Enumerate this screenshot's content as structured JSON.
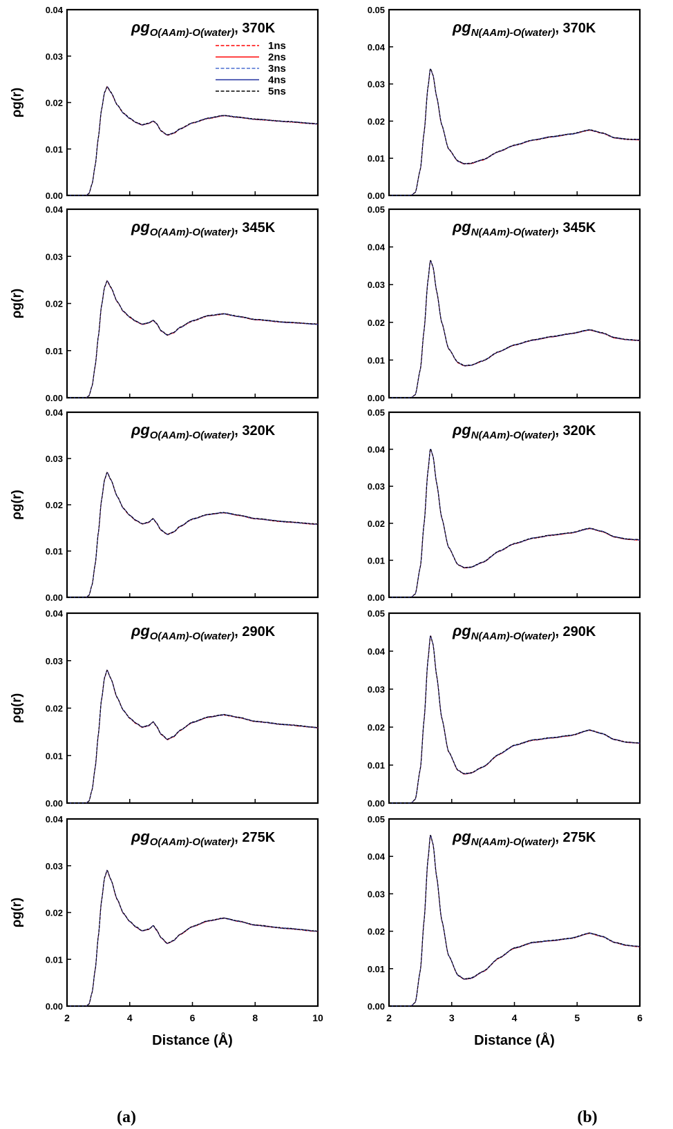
{
  "figure": {
    "column_captions": [
      "(a)",
      "(b)"
    ],
    "legend": [
      {
        "label": "1ns",
        "color": "#ff0000",
        "dash": true
      },
      {
        "label": "2ns",
        "color": "#ff0000",
        "dash": false
      },
      {
        "label": "3ns",
        "color": "#4a6fd0",
        "dash": true
      },
      {
        "label": "4ns",
        "color": "#1f2f9e",
        "dash": false
      },
      {
        "label": "5ns",
        "color": "#000000",
        "dash": true
      }
    ]
  },
  "chart_data": [
    {
      "type": "line",
      "title": "ρg",
      "title_sub": "O(AAm)-O(water)",
      "title_temp": ", 370K",
      "xlabel": "",
      "ylabel": "ρg(r)",
      "xlim": [
        2,
        10
      ],
      "ylim": [
        0,
        0.04
      ],
      "yticks": [
        "0.00",
        "0.01",
        "0.02",
        "0.03",
        "0.04"
      ],
      "xticks": [],
      "onset": 2.65,
      "profile": [
        [
          2.6,
          0
        ],
        [
          2.7,
          0.0004
        ],
        [
          2.8,
          0.0025
        ],
        [
          2.9,
          0.0065
        ],
        [
          3.0,
          0.0125
        ],
        [
          3.1,
          0.0185
        ],
        [
          3.2,
          0.0222
        ],
        [
          3.28,
          0.0234
        ],
        [
          3.4,
          0.0222
        ],
        [
          3.6,
          0.0195
        ],
        [
          3.8,
          0.0177
        ],
        [
          4.0,
          0.0166
        ],
        [
          4.2,
          0.0157
        ],
        [
          4.4,
          0.0152
        ],
        [
          4.6,
          0.0155
        ],
        [
          4.75,
          0.016
        ],
        [
          4.85,
          0.0155
        ],
        [
          5.0,
          0.0139
        ],
        [
          5.2,
          0.013
        ],
        [
          5.4,
          0.0134
        ],
        [
          5.6,
          0.0143
        ],
        [
          6.0,
          0.0156
        ],
        [
          6.5,
          0.0166
        ],
        [
          7.0,
          0.0172
        ],
        [
          7.5,
          0.0168
        ],
        [
          8.0,
          0.0164
        ],
        [
          9.0,
          0.0159
        ],
        [
          10.0,
          0.0154
        ]
      ]
    },
    {
      "type": "line",
      "title": "ρg",
      "title_sub": "N(AAm)-O(water)",
      "title_temp": ", 370K",
      "xlabel": "",
      "ylabel": "",
      "xlim": [
        2,
        6
      ],
      "ylim": [
        0,
        0.05
      ],
      "yticks": [
        "0.00",
        "0.01",
        "0.02",
        "0.03",
        "0.04",
        "0.05"
      ],
      "xticks": [],
      "onset": 2.38,
      "profile": [
        [
          2.35,
          0
        ],
        [
          2.42,
          0.0008
        ],
        [
          2.5,
          0.007
        ],
        [
          2.56,
          0.017
        ],
        [
          2.62,
          0.029
        ],
        [
          2.66,
          0.0342
        ],
        [
          2.7,
          0.0325
        ],
        [
          2.76,
          0.0265
        ],
        [
          2.84,
          0.019
        ],
        [
          2.95,
          0.0125
        ],
        [
          3.1,
          0.0092
        ],
        [
          3.2,
          0.0085
        ],
        [
          3.3,
          0.0086
        ],
        [
          3.5,
          0.0096
        ],
        [
          3.75,
          0.0118
        ],
        [
          4.0,
          0.0135
        ],
        [
          4.3,
          0.0149
        ],
        [
          4.6,
          0.0158
        ],
        [
          4.9,
          0.0165
        ],
        [
          5.2,
          0.0176
        ],
        [
          5.4,
          0.0168
        ],
        [
          5.6,
          0.0155
        ],
        [
          5.8,
          0.0151
        ],
        [
          6.0,
          0.015
        ]
      ]
    },
    {
      "type": "line",
      "title": "ρg",
      "title_sub": "O(AAm)-O(water)",
      "title_temp": ", 345K",
      "xlabel": "",
      "ylabel": "ρg(r)",
      "xlim": [
        2,
        10
      ],
      "ylim": [
        0,
        0.04
      ],
      "yticks": [
        "0.00",
        "0.01",
        "0.02",
        "0.03",
        "0.04"
      ],
      "xticks": [],
      "onset": 2.65,
      "profile": [
        [
          2.6,
          0
        ],
        [
          2.7,
          0.0004
        ],
        [
          2.8,
          0.0025
        ],
        [
          2.9,
          0.0068
        ],
        [
          3.0,
          0.013
        ],
        [
          3.1,
          0.0195
        ],
        [
          3.2,
          0.0235
        ],
        [
          3.28,
          0.0248
        ],
        [
          3.4,
          0.0234
        ],
        [
          3.6,
          0.0204
        ],
        [
          3.8,
          0.0183
        ],
        [
          4.0,
          0.0171
        ],
        [
          4.2,
          0.0162
        ],
        [
          4.4,
          0.0156
        ],
        [
          4.6,
          0.0159
        ],
        [
          4.75,
          0.0164
        ],
        [
          4.85,
          0.0158
        ],
        [
          5.0,
          0.0142
        ],
        [
          5.2,
          0.0133
        ],
        [
          5.4,
          0.0138
        ],
        [
          5.6,
          0.0149
        ],
        [
          6.0,
          0.0163
        ],
        [
          6.5,
          0.0174
        ],
        [
          7.0,
          0.0178
        ],
        [
          7.5,
          0.0172
        ],
        [
          8.0,
          0.0166
        ],
        [
          9.0,
          0.016
        ],
        [
          10.0,
          0.0156
        ]
      ]
    },
    {
      "type": "line",
      "title": "ρg",
      "title_sub": "N(AAm)-O(water)",
      "title_temp": ", 345K",
      "xlabel": "",
      "ylabel": "",
      "xlim": [
        2,
        6
      ],
      "ylim": [
        0,
        0.05
      ],
      "yticks": [
        "0.00",
        "0.01",
        "0.02",
        "0.03",
        "0.04",
        "0.05"
      ],
      "xticks": [],
      "onset": 2.38,
      "profile": [
        [
          2.35,
          0
        ],
        [
          2.42,
          0.0008
        ],
        [
          2.5,
          0.0075
        ],
        [
          2.56,
          0.018
        ],
        [
          2.62,
          0.031
        ],
        [
          2.66,
          0.0365
        ],
        [
          2.7,
          0.0348
        ],
        [
          2.76,
          0.0282
        ],
        [
          2.84,
          0.02
        ],
        [
          2.95,
          0.013
        ],
        [
          3.1,
          0.0093
        ],
        [
          3.2,
          0.0085
        ],
        [
          3.3,
          0.0086
        ],
        [
          3.5,
          0.0098
        ],
        [
          3.75,
          0.0122
        ],
        [
          4.0,
          0.014
        ],
        [
          4.3,
          0.0153
        ],
        [
          4.6,
          0.0162
        ],
        [
          4.9,
          0.017
        ],
        [
          5.2,
          0.018
        ],
        [
          5.4,
          0.0172
        ],
        [
          5.6,
          0.0159
        ],
        [
          5.8,
          0.0154
        ],
        [
          6.0,
          0.0152
        ]
      ]
    },
    {
      "type": "line",
      "title": "ρg",
      "title_sub": "O(AAm)-O(water)",
      "title_temp": ", 320K",
      "xlabel": "",
      "ylabel": "ρg(r)",
      "xlim": [
        2,
        10
      ],
      "ylim": [
        0,
        0.04
      ],
      "yticks": [
        "0.00",
        "0.01",
        "0.02",
        "0.03",
        "0.04"
      ],
      "xticks": [],
      "onset": 2.65,
      "profile": [
        [
          2.6,
          0
        ],
        [
          2.7,
          0.0004
        ],
        [
          2.8,
          0.0027
        ],
        [
          2.9,
          0.0072
        ],
        [
          3.0,
          0.014
        ],
        [
          3.1,
          0.021
        ],
        [
          3.2,
          0.0255
        ],
        [
          3.28,
          0.027
        ],
        [
          3.4,
          0.0254
        ],
        [
          3.6,
          0.0218
        ],
        [
          3.8,
          0.0192
        ],
        [
          4.0,
          0.0177
        ],
        [
          4.2,
          0.0166
        ],
        [
          4.4,
          0.0159
        ],
        [
          4.6,
          0.0162
        ],
        [
          4.75,
          0.017
        ],
        [
          4.85,
          0.0161
        ],
        [
          5.0,
          0.0145
        ],
        [
          5.2,
          0.0136
        ],
        [
          5.4,
          0.0141
        ],
        [
          5.6,
          0.0153
        ],
        [
          6.0,
          0.0169
        ],
        [
          6.5,
          0.0179
        ],
        [
          7.0,
          0.0183
        ],
        [
          7.5,
          0.0177
        ],
        [
          8.0,
          0.017
        ],
        [
          9.0,
          0.0163
        ],
        [
          10.0,
          0.0158
        ]
      ]
    },
    {
      "type": "line",
      "title": "ρg",
      "title_sub": "N(AAm)-O(water)",
      "title_temp": ", 320K",
      "xlabel": "",
      "ylabel": "",
      "xlim": [
        2,
        6
      ],
      "ylim": [
        0,
        0.05
      ],
      "yticks": [
        "0.00",
        "0.01",
        "0.02",
        "0.03",
        "0.04",
        "0.05"
      ],
      "xticks": [],
      "onset": 2.38,
      "profile": [
        [
          2.35,
          0
        ],
        [
          2.42,
          0.0009
        ],
        [
          2.5,
          0.0082
        ],
        [
          2.56,
          0.02
        ],
        [
          2.62,
          0.034
        ],
        [
          2.66,
          0.0402
        ],
        [
          2.7,
          0.0383
        ],
        [
          2.76,
          0.0308
        ],
        [
          2.84,
          0.0215
        ],
        [
          2.95,
          0.0135
        ],
        [
          3.1,
          0.0088
        ],
        [
          3.2,
          0.008
        ],
        [
          3.3,
          0.0081
        ],
        [
          3.5,
          0.0095
        ],
        [
          3.75,
          0.0124
        ],
        [
          4.0,
          0.0145
        ],
        [
          4.3,
          0.016
        ],
        [
          4.6,
          0.0168
        ],
        [
          4.9,
          0.0174
        ],
        [
          5.2,
          0.0186
        ],
        [
          5.4,
          0.0178
        ],
        [
          5.6,
          0.0163
        ],
        [
          5.8,
          0.0157
        ],
        [
          6.0,
          0.0155
        ]
      ]
    },
    {
      "type": "line",
      "title": "ρg",
      "title_sub": "O(AAm)-O(water)",
      "title_temp": ", 290K",
      "xlabel": "",
      "ylabel": "ρg(r)",
      "xlim": [
        2,
        10
      ],
      "ylim": [
        0,
        0.04
      ],
      "yticks": [
        "0.00",
        "0.01",
        "0.02",
        "0.03",
        "0.04"
      ],
      "xticks": [],
      "onset": 2.65,
      "profile": [
        [
          2.6,
          0
        ],
        [
          2.7,
          0.0004
        ],
        [
          2.8,
          0.0028
        ],
        [
          2.9,
          0.0075
        ],
        [
          3.0,
          0.0145
        ],
        [
          3.1,
          0.0218
        ],
        [
          3.2,
          0.0265
        ],
        [
          3.28,
          0.028
        ],
        [
          3.4,
          0.0262
        ],
        [
          3.6,
          0.0222
        ],
        [
          3.8,
          0.0195
        ],
        [
          4.0,
          0.0179
        ],
        [
          4.2,
          0.0168
        ],
        [
          4.4,
          0.016
        ],
        [
          4.6,
          0.0163
        ],
        [
          4.75,
          0.0171
        ],
        [
          4.85,
          0.0162
        ],
        [
          5.0,
          0.0145
        ],
        [
          5.2,
          0.0134
        ],
        [
          5.4,
          0.014
        ],
        [
          5.6,
          0.0153
        ],
        [
          6.0,
          0.017
        ],
        [
          6.5,
          0.0181
        ],
        [
          7.0,
          0.0186
        ],
        [
          7.5,
          0.018
        ],
        [
          8.0,
          0.0172
        ],
        [
          9.0,
          0.0165
        ],
        [
          10.0,
          0.0159
        ]
      ]
    },
    {
      "type": "line",
      "title": "ρg",
      "title_sub": "N(AAm)-O(water)",
      "title_temp": ", 290K",
      "xlabel": "",
      "ylabel": "",
      "xlim": [
        2,
        6
      ],
      "ylim": [
        0,
        0.05
      ],
      "yticks": [
        "0.00",
        "0.01",
        "0.02",
        "0.03",
        "0.04",
        "0.05"
      ],
      "xticks": [],
      "onset": 2.38,
      "profile": [
        [
          2.35,
          0
        ],
        [
          2.42,
          0.001
        ],
        [
          2.5,
          0.009
        ],
        [
          2.56,
          0.022
        ],
        [
          2.62,
          0.0375
        ],
        [
          2.66,
          0.0442
        ],
        [
          2.7,
          0.042
        ],
        [
          2.76,
          0.0335
        ],
        [
          2.84,
          0.0225
        ],
        [
          2.95,
          0.0135
        ],
        [
          3.1,
          0.0086
        ],
        [
          3.2,
          0.0077
        ],
        [
          3.3,
          0.0079
        ],
        [
          3.5,
          0.0095
        ],
        [
          3.75,
          0.0128
        ],
        [
          4.0,
          0.0152
        ],
        [
          4.3,
          0.0166
        ],
        [
          4.6,
          0.0172
        ],
        [
          4.9,
          0.0178
        ],
        [
          5.2,
          0.0192
        ],
        [
          5.4,
          0.0183
        ],
        [
          5.6,
          0.0167
        ],
        [
          5.8,
          0.016
        ],
        [
          6.0,
          0.0158
        ]
      ]
    },
    {
      "type": "line",
      "title": "ρg",
      "title_sub": "O(AAm)-O(water)",
      "title_temp": ", 275K",
      "xlabel": "Distance (Å)",
      "ylabel": "ρg(r)",
      "xlim": [
        2,
        10
      ],
      "ylim": [
        0,
        0.04
      ],
      "yticks": [
        "0.00",
        "0.01",
        "0.02",
        "0.03",
        "0.04"
      ],
      "xticks": [
        "2",
        "4",
        "6",
        "8",
        "10"
      ],
      "onset": 2.65,
      "profile": [
        [
          2.6,
          0
        ],
        [
          2.7,
          0.0004
        ],
        [
          2.8,
          0.0029
        ],
        [
          2.9,
          0.0078
        ],
        [
          3.0,
          0.015
        ],
        [
          3.1,
          0.0225
        ],
        [
          3.2,
          0.0275
        ],
        [
          3.28,
          0.029
        ],
        [
          3.4,
          0.027
        ],
        [
          3.6,
          0.0228
        ],
        [
          3.8,
          0.0198
        ],
        [
          4.0,
          0.0181
        ],
        [
          4.2,
          0.0169
        ],
        [
          4.4,
          0.0161
        ],
        [
          4.6,
          0.0164
        ],
        [
          4.75,
          0.0172
        ],
        [
          4.85,
          0.0163
        ],
        [
          5.0,
          0.0146
        ],
        [
          5.2,
          0.0134
        ],
        [
          5.4,
          0.014
        ],
        [
          5.6,
          0.0153
        ],
        [
          6.0,
          0.017
        ],
        [
          6.5,
          0.0182
        ],
        [
          7.0,
          0.0188
        ],
        [
          7.5,
          0.0181
        ],
        [
          8.0,
          0.0173
        ],
        [
          9.0,
          0.0166
        ],
        [
          10.0,
          0.016
        ]
      ]
    },
    {
      "type": "line",
      "title": "ρg",
      "title_sub": "N(AAm)-O(water)",
      "title_temp": ", 275K",
      "xlabel": "Distance (Å)",
      "ylabel": "",
      "xlim": [
        2,
        6
      ],
      "ylim": [
        0,
        0.05
      ],
      "yticks": [
        "0.00",
        "0.01",
        "0.02",
        "0.03",
        "0.04",
        "0.05"
      ],
      "xticks": [
        "2",
        "3",
        "4",
        "5",
        "6"
      ],
      "onset": 2.38,
      "profile": [
        [
          2.35,
          0
        ],
        [
          2.42,
          0.001
        ],
        [
          2.5,
          0.0095
        ],
        [
          2.56,
          0.023
        ],
        [
          2.62,
          0.039
        ],
        [
          2.66,
          0.0458
        ],
        [
          2.7,
          0.0435
        ],
        [
          2.76,
          0.0345
        ],
        [
          2.84,
          0.023
        ],
        [
          2.95,
          0.0135
        ],
        [
          3.1,
          0.0082
        ],
        [
          3.2,
          0.0072
        ],
        [
          3.3,
          0.0074
        ],
        [
          3.5,
          0.0092
        ],
        [
          3.75,
          0.0128
        ],
        [
          4.0,
          0.0155
        ],
        [
          4.3,
          0.017
        ],
        [
          4.6,
          0.0175
        ],
        [
          4.9,
          0.0181
        ],
        [
          5.2,
          0.0195
        ],
        [
          5.4,
          0.0186
        ],
        [
          5.6,
          0.017
        ],
        [
          5.8,
          0.0162
        ],
        [
          6.0,
          0.0159
        ]
      ]
    }
  ]
}
